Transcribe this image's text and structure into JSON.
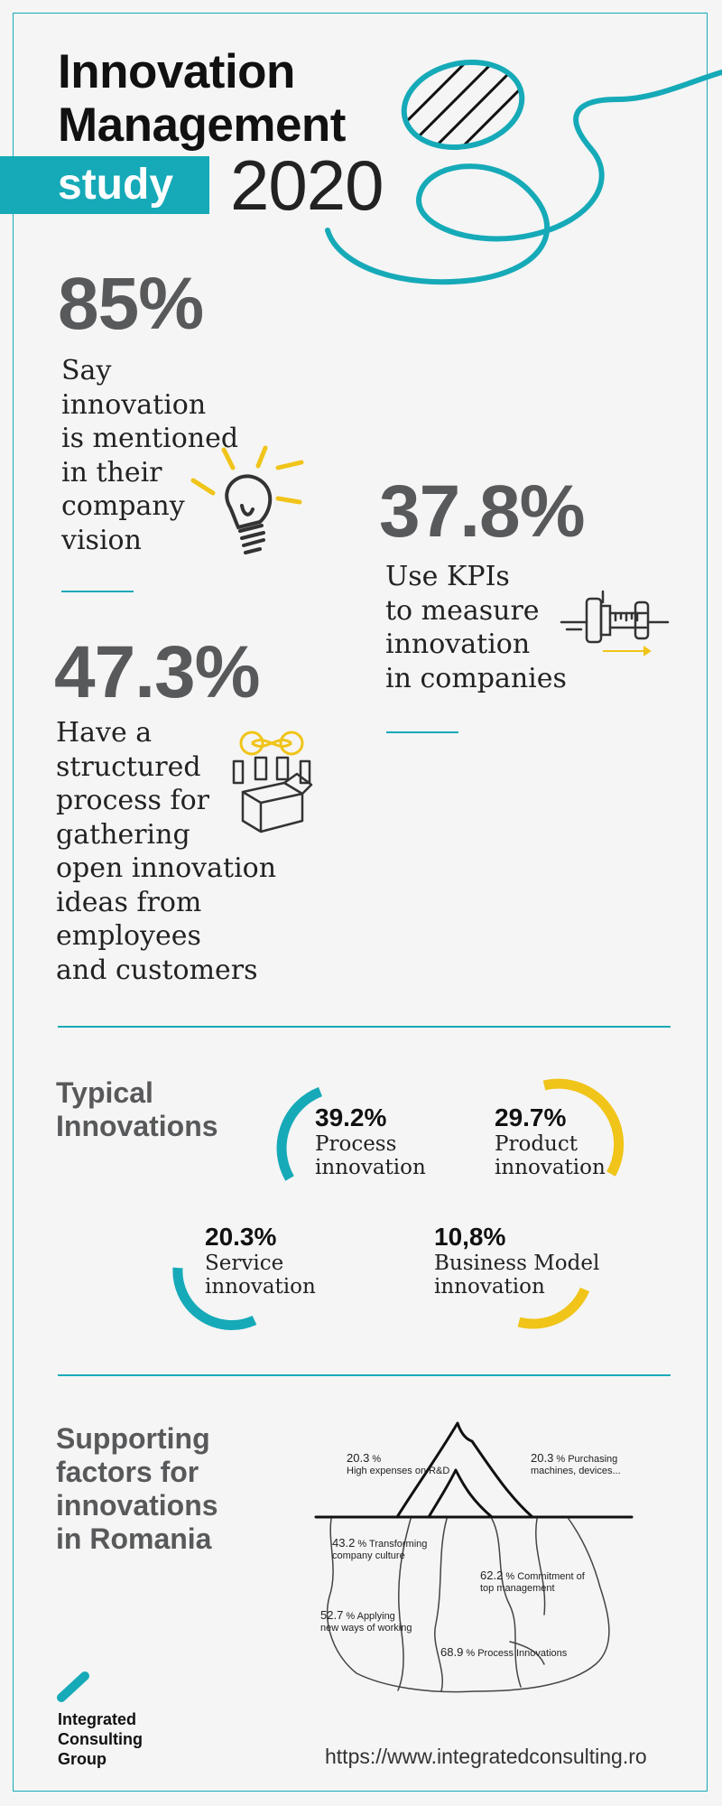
{
  "header": {
    "title_line1": "Innovation",
    "title_line2": "Management",
    "study_label": "study",
    "year": "2020"
  },
  "stats": [
    {
      "value": "85%",
      "lines": [
        "Say",
        "innovation",
        "is mentioned",
        "in their",
        "company",
        "vision"
      ],
      "icon": "lightbulb-icon"
    },
    {
      "value": "37.8%",
      "lines": [
        "Use KPIs",
        "to measure",
        "innovation",
        "in companies"
      ],
      "icon": "caliper-icon"
    },
    {
      "value": "47.3%",
      "lines": [
        "Have a",
        "structured",
        "process for",
        "gathering",
        "open innovation",
        "ideas from",
        "employees",
        "and customers"
      ],
      "icon": "ideas-box-icon"
    }
  ],
  "typical": {
    "heading_line1": "Typical",
    "heading_line2": "Innovations",
    "items": [
      {
        "pct": "39.2%",
        "line1": "Process",
        "line2": "innovation",
        "value": 39.2,
        "color": "#16aab8"
      },
      {
        "pct": "29.7%",
        "line1": "Product",
        "line2": "innovation",
        "value": 29.7,
        "color": "#f0c419"
      },
      {
        "pct": "20.3%",
        "line1": "Service",
        "line2": "innovation",
        "value": 20.3,
        "color": "#16aab8"
      },
      {
        "pct": "10,8%",
        "line1": "Business Model",
        "line2": "innovation",
        "value": 10.8,
        "color": "#f0c419"
      }
    ]
  },
  "supporting": {
    "heading_lines": [
      "Supporting",
      "factors for",
      "innovations",
      "in Romania"
    ],
    "factors": [
      {
        "pct": "20.3",
        "unit": "%",
        "line1": "High expenses on R&D",
        "line2": ""
      },
      {
        "pct": "20.3",
        "unit": "% Purchasing",
        "line1": "machines, devices...",
        "line2": ""
      },
      {
        "pct": "43.2",
        "unit": "% Transforming",
        "line1": "company culture",
        "line2": ""
      },
      {
        "pct": "62.2",
        "unit": "% Commitment of",
        "line1": "top management",
        "line2": ""
      },
      {
        "pct": "52.7",
        "unit": "% Applying",
        "line1": "new ways of working",
        "line2": ""
      },
      {
        "pct": "68.9",
        "unit": "% Process Innovations",
        "line1": "",
        "line2": ""
      }
    ]
  },
  "footer": {
    "company_lines": [
      "Integrated",
      "Consulting",
      "Group"
    ],
    "url": "https://www.integratedconsulting.ro"
  },
  "colors": {
    "accent": "#16aab8",
    "yellow": "#f0c419",
    "gray": "#58595b"
  }
}
